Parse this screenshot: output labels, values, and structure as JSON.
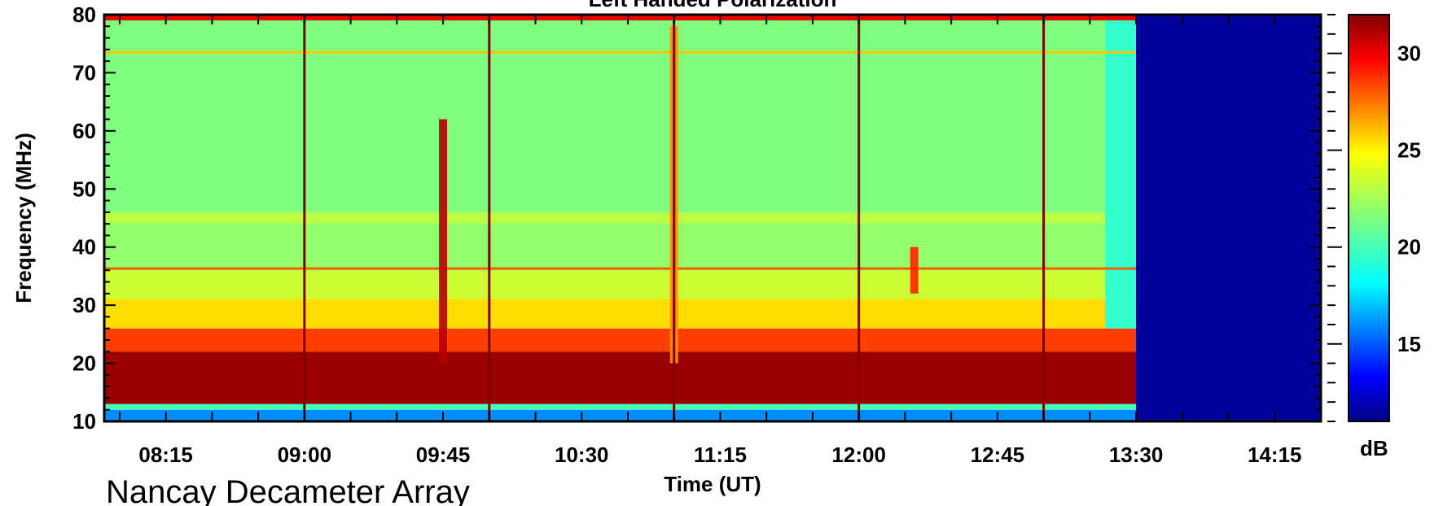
{
  "chart_data": {
    "type": "heatmap",
    "title": "Left Handed Polarization",
    "xlabel": "Time (UT)",
    "ylabel": "Frequency (MHz)",
    "x_range_minutes": [
      475,
      870
    ],
    "x_tick_labels": [
      "08:15",
      "09:00",
      "09:45",
      "10:30",
      "11:15",
      "12:00",
      "12:45",
      "13:30",
      "14:15"
    ],
    "x_tick_minutes": [
      495,
      540,
      585,
      630,
      675,
      720,
      765,
      810,
      855
    ],
    "ylim": [
      10,
      80
    ],
    "y_ticks": [
      10,
      20,
      30,
      40,
      50,
      60,
      70,
      80
    ],
    "colorbar": {
      "label": "dB",
      "range": [
        11,
        32
      ],
      "ticks": [
        15,
        20,
        25,
        30
      ]
    },
    "data_end_time": "13:30",
    "background_level_db": 21.5,
    "frequency_bands": [
      {
        "from_mhz": 10,
        "to_mhz": 12,
        "level_db": 16
      },
      {
        "from_mhz": 12,
        "to_mhz": 13,
        "level_db": 20
      },
      {
        "from_mhz": 13,
        "to_mhz": 22,
        "level_db": 31.5
      },
      {
        "from_mhz": 22,
        "to_mhz": 26,
        "level_db": 28.5
      },
      {
        "from_mhz": 26,
        "to_mhz": 31,
        "level_db": 25.5
      },
      {
        "from_mhz": 31,
        "to_mhz": 36,
        "level_db": 23.5
      },
      {
        "from_mhz": 36,
        "to_mhz": 44,
        "level_db": 22
      },
      {
        "from_mhz": 44,
        "to_mhz": 46,
        "level_db": 23
      },
      {
        "from_mhz": 46,
        "to_mhz": 79,
        "level_db": 21.5
      },
      {
        "from_mhz": 79,
        "to_mhz": 80,
        "level_db": 30
      }
    ],
    "line_features_mhz": [
      {
        "freq": 73.5,
        "level_db": 26
      },
      {
        "freq": 36.3,
        "level_db": 28
      }
    ],
    "calibration_lines": [
      "09:00",
      "10:00",
      "11:00",
      "12:00",
      "13:00"
    ],
    "bursts": [
      {
        "time": "09:45",
        "from_mhz": 20,
        "to_mhz": 62,
        "level_db": 31
      },
      {
        "time": "11:00",
        "from_mhz": 20,
        "to_mhz": 78,
        "level_db": 27
      },
      {
        "time": "12:18",
        "from_mhz": 32,
        "to_mhz": 40,
        "level_db": 29
      }
    ],
    "late_interval": {
      "from": "13:20",
      "to": "13:30",
      "level_db": 19.5
    },
    "no_data_level_db": 11.5
  },
  "footer": {
    "instrument": "Nancay Decameter Array"
  }
}
